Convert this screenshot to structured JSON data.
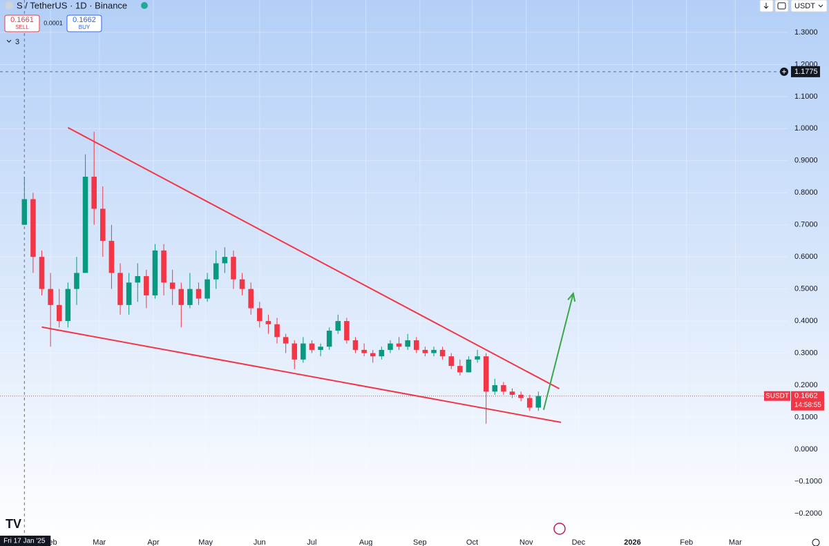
{
  "header": {
    "title": "S / TetherUS · 1D · Binance",
    "sell": {
      "price": "0.1661",
      "label": "SELL"
    },
    "spread": "0.0001",
    "buy": {
      "price": "0.1662",
      "label": "BUY"
    },
    "indicators": 3,
    "currency": "USDT"
  },
  "chart_data": {
    "type": "candlestick",
    "x": [
      "2025-01-17",
      "2025-01-22",
      "2025-01-27",
      "2025-02-01",
      "2025-02-06",
      "2025-02-11",
      "2025-02-16",
      "2025-02-21",
      "2025-02-26",
      "2025-03-03",
      "2025-03-08",
      "2025-03-13",
      "2025-03-18",
      "2025-03-23",
      "2025-03-28",
      "2025-04-02",
      "2025-04-07",
      "2025-04-12",
      "2025-04-17",
      "2025-04-22",
      "2025-04-27",
      "2025-05-02",
      "2025-05-07",
      "2025-05-12",
      "2025-05-17",
      "2025-05-22",
      "2025-05-27",
      "2025-06-01",
      "2025-06-06",
      "2025-06-11",
      "2025-06-16",
      "2025-06-21",
      "2025-06-26",
      "2025-07-01",
      "2025-07-06",
      "2025-07-11",
      "2025-07-16",
      "2025-07-21",
      "2025-07-26",
      "2025-07-31",
      "2025-08-05",
      "2025-08-10",
      "2025-08-15",
      "2025-08-20",
      "2025-08-25",
      "2025-08-30",
      "2025-09-04",
      "2025-09-09",
      "2025-09-14",
      "2025-09-19",
      "2025-09-24",
      "2025-09-29",
      "2025-10-04",
      "2025-10-09",
      "2025-10-14",
      "2025-10-19",
      "2025-10-24",
      "2025-10-29",
      "2025-11-03",
      "2025-11-08"
    ],
    "open": [
      0.7,
      0.78,
      0.6,
      0.5,
      0.45,
      0.4,
      0.5,
      0.55,
      0.85,
      0.75,
      0.65,
      0.55,
      0.45,
      0.52,
      0.54,
      0.48,
      0.62,
      0.52,
      0.5,
      0.45,
      0.5,
      0.47,
      0.53,
      0.58,
      0.6,
      0.53,
      0.5,
      0.44,
      0.4,
      0.39,
      0.35,
      0.33,
      0.28,
      0.33,
      0.31,
      0.32,
      0.37,
      0.4,
      0.34,
      0.31,
      0.3,
      0.29,
      0.31,
      0.33,
      0.32,
      0.34,
      0.31,
      0.3,
      0.31,
      0.29,
      0.26,
      0.24,
      0.28,
      0.29,
      0.18,
      0.2,
      0.18,
      0.17,
      0.16,
      0.13
    ],
    "high": [
      0.85,
      0.8,
      0.62,
      0.55,
      0.5,
      0.52,
      0.6,
      0.92,
      0.99,
      0.82,
      0.7,
      0.58,
      0.55,
      0.58,
      0.56,
      0.64,
      0.64,
      0.56,
      0.52,
      0.55,
      0.52,
      0.55,
      0.62,
      0.63,
      0.62,
      0.55,
      0.52,
      0.46,
      0.42,
      0.41,
      0.36,
      0.34,
      0.35,
      0.34,
      0.33,
      0.38,
      0.42,
      0.41,
      0.35,
      0.33,
      0.31,
      0.32,
      0.34,
      0.35,
      0.36,
      0.35,
      0.32,
      0.32,
      0.32,
      0.3,
      0.28,
      0.29,
      0.31,
      0.3,
      0.22,
      0.21,
      0.19,
      0.18,
      0.17,
      0.18
    ],
    "low": [
      0.7,
      0.55,
      0.48,
      0.32,
      0.38,
      0.38,
      0.45,
      0.55,
      0.7,
      0.6,
      0.5,
      0.42,
      0.42,
      0.46,
      0.44,
      0.47,
      0.48,
      0.45,
      0.38,
      0.44,
      0.45,
      0.46,
      0.5,
      0.55,
      0.5,
      0.48,
      0.42,
      0.38,
      0.36,
      0.33,
      0.3,
      0.25,
      0.27,
      0.3,
      0.29,
      0.31,
      0.36,
      0.33,
      0.3,
      0.29,
      0.27,
      0.28,
      0.3,
      0.31,
      0.31,
      0.3,
      0.29,
      0.29,
      0.28,
      0.25,
      0.23,
      0.24,
      0.27,
      0.08,
      0.17,
      0.17,
      0.16,
      0.15,
      0.12,
      0.12
    ],
    "close": [
      0.78,
      0.6,
      0.5,
      0.45,
      0.4,
      0.5,
      0.55,
      0.85,
      0.75,
      0.65,
      0.55,
      0.45,
      0.52,
      0.54,
      0.48,
      0.62,
      0.52,
      0.5,
      0.45,
      0.5,
      0.47,
      0.53,
      0.58,
      0.6,
      0.53,
      0.5,
      0.44,
      0.4,
      0.39,
      0.35,
      0.33,
      0.28,
      0.33,
      0.31,
      0.32,
      0.37,
      0.4,
      0.34,
      0.31,
      0.3,
      0.29,
      0.31,
      0.33,
      0.32,
      0.34,
      0.31,
      0.3,
      0.31,
      0.29,
      0.26,
      0.24,
      0.28,
      0.29,
      0.18,
      0.2,
      0.18,
      0.17,
      0.16,
      0.13,
      0.1662
    ],
    "up_color": "#089981",
    "down_color": "#f23645",
    "xlim": [
      "2025-01-03",
      "2026-03-31"
    ],
    "xticks": [
      {
        "value": "2025-02-01",
        "label": "Feb"
      },
      {
        "value": "2025-03-01",
        "label": "Mar"
      },
      {
        "value": "2025-04-01",
        "label": "Apr"
      },
      {
        "value": "2025-05-01",
        "label": "May"
      },
      {
        "value": "2025-06-01",
        "label": "Jun"
      },
      {
        "value": "2025-07-01",
        "label": "Jul"
      },
      {
        "value": "2025-08-01",
        "label": "Aug"
      },
      {
        "value": "2025-09-01",
        "label": "Sep"
      },
      {
        "value": "2025-10-01",
        "label": "Oct"
      },
      {
        "value": "2025-11-01",
        "label": "Nov"
      },
      {
        "value": "2025-12-01",
        "label": "Dec"
      },
      {
        "value": "2026-01-01",
        "label": "2026"
      },
      {
        "value": "2026-02-01",
        "label": "Feb"
      },
      {
        "value": "2026-03-01",
        "label": "Mar"
      }
    ],
    "ylim": [
      -0.267,
      1.401
    ],
    "yticks": [
      {
        "value": 1.3,
        "label": "1.3000"
      },
      {
        "value": 1.2,
        "label": "1.2000"
      },
      {
        "value": 1.1,
        "label": "1.1000"
      },
      {
        "value": 1.0,
        "label": "1.0000"
      },
      {
        "value": 0.9,
        "label": "0.9000"
      },
      {
        "value": 0.8,
        "label": "0.8000"
      },
      {
        "value": 0.7,
        "label": "0.7000"
      },
      {
        "value": 0.6,
        "label": "0.6000"
      },
      {
        "value": 0.5,
        "label": "0.5000"
      },
      {
        "value": 0.4,
        "label": "0.4000"
      },
      {
        "value": 0.3,
        "label": "0.3000"
      },
      {
        "value": 0.2,
        "label": "0.2000"
      },
      {
        "value": 0.1,
        "label": "0.1000"
      },
      {
        "value": 0,
        "label": "0.0000"
      },
      {
        "value": -0.1,
        "label": "−0.1000"
      },
      {
        "value": -0.2,
        "label": "−0.2000"
      }
    ],
    "grid": true,
    "crosshair": {
      "x": {
        "value": "2025-01-17",
        "label": "Fri 17 Jan '25"
      },
      "y": 1.1775
    },
    "last_price": {
      "symbol": "SUSDT",
      "value": 0.1662,
      "countdown": "14:58:55",
      "color": "#f23645"
    },
    "drawings": [
      {
        "type": "trendline",
        "color": "#f23645",
        "x": [
          "2025-02-11",
          "2025-11-20"
        ],
        "y": [
          1.003,
          0.189
        ]
      },
      {
        "type": "trendline",
        "color": "#f23645",
        "x": [
          "2025-01-27",
          "2025-11-21"
        ],
        "y": [
          0.381,
          0.084
        ]
      },
      {
        "type": "arrow",
        "color": "#3aa64a",
        "x": [
          "2025-11-11",
          "2025-11-28"
        ],
        "y": [
          0.123,
          0.486
        ]
      }
    ]
  }
}
